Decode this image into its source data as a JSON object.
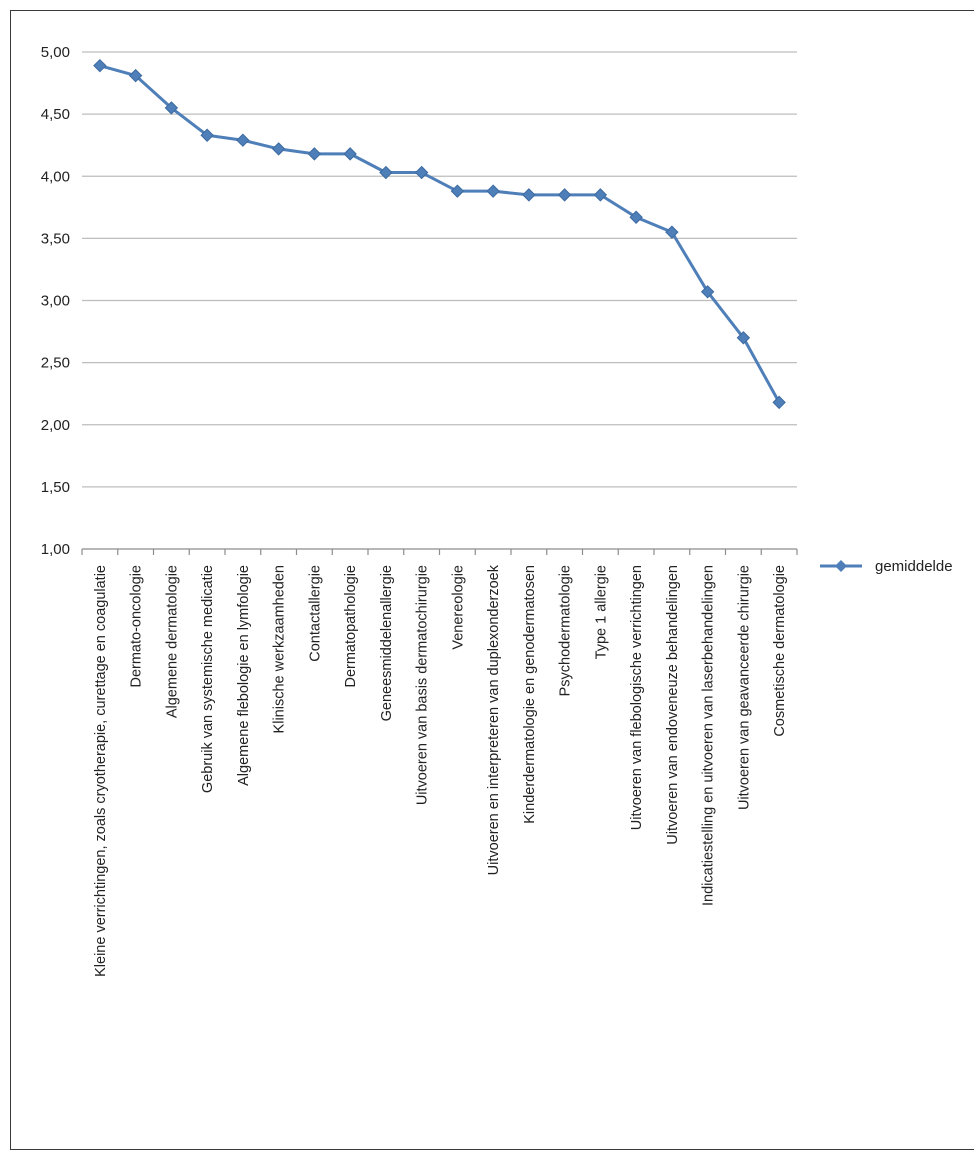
{
  "chart_data": {
    "type": "line",
    "categories": [
      "Kleine verrichtingen, zoals cryotherapie, curettage en coagulatie",
      "Dermato-oncologie",
      "Algemene dermatologie",
      "Gebruik van systemische medicatie",
      "Algemene flebologie en lymfologie",
      "Klinische werkzaamheden",
      "Contactallergie",
      "Dermatopathologie",
      "Geneesmiddelenallergie",
      "Uitvoeren van basis dermatochirurgie",
      "Venereologie",
      "Uitvoeren en interpreteren van duplexonderzoek",
      "Kinderdermatologie en genodermatosen",
      "Psychodermatologie",
      "Type 1 allergie",
      "Uitvoeren van flebologische verrichtingen",
      "Uitvoeren van endoveneuze behandelingen",
      "Indicatiestelling en uitvoeren van laserbehandelingen",
      "Uitvoeren van geavanceerde chirurgie",
      "Cosmetische dermatologie"
    ],
    "series": [
      {
        "name": "gemiddelde",
        "values": [
          4.89,
          4.81,
          4.55,
          4.33,
          4.29,
          4.22,
          4.18,
          4.18,
          4.03,
          4.03,
          3.88,
          3.88,
          3.85,
          3.85,
          3.85,
          3.67,
          3.55,
          3.07,
          2.7,
          2.18
        ],
        "color": "#4f7fb9"
      }
    ],
    "yticks": [
      "1,00",
      "1,50",
      "2,00",
      "2,50",
      "3,00",
      "3,50",
      "4,00",
      "4,50",
      "5,00"
    ],
    "ylim": [
      1,
      5
    ],
    "grid": true,
    "legend_position": "right",
    "title": "",
    "xlabel": "",
    "ylabel": ""
  }
}
